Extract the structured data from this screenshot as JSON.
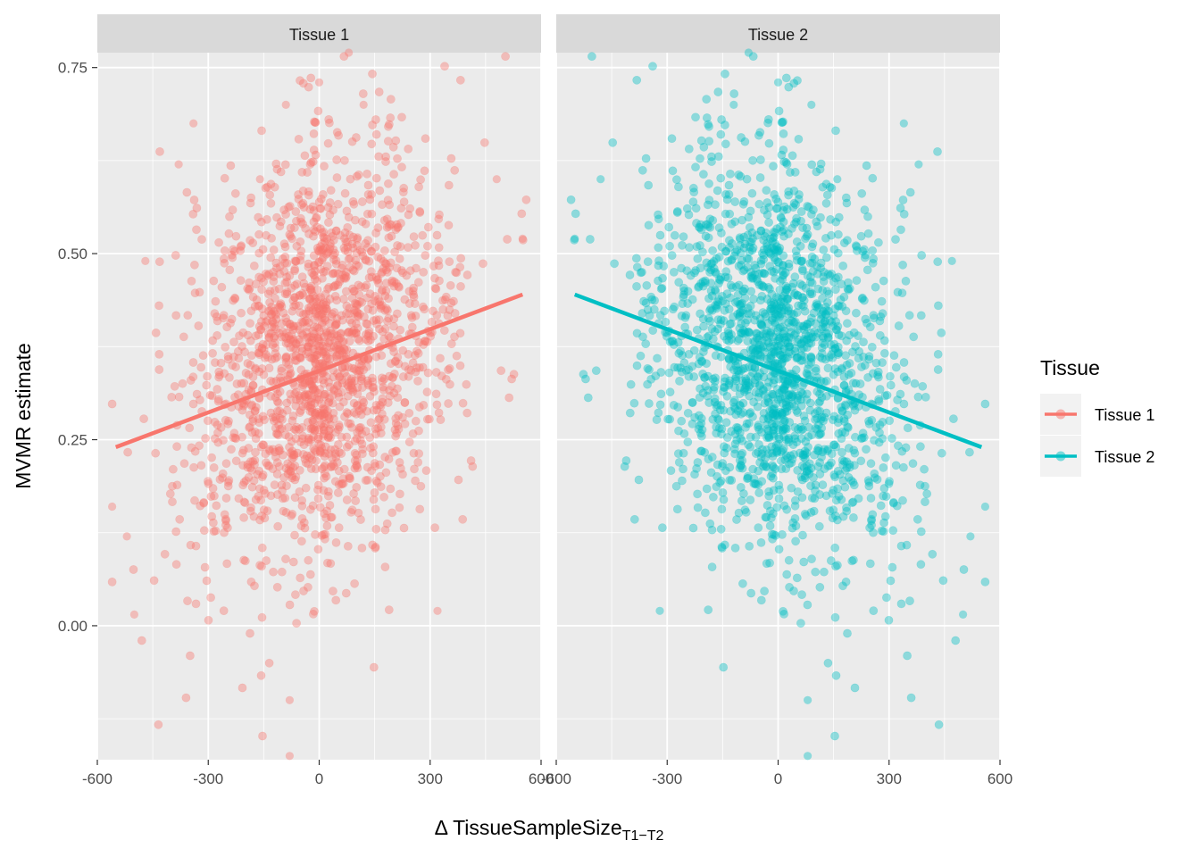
{
  "chart_data": {
    "type": "scatter",
    "facets": [
      "Tissue 1",
      "Tissue 2"
    ],
    "ylabel": "MVMR estimate",
    "xlabel": {
      "main": "Δ TissueSampleSize",
      "subscript": "T1−T2"
    },
    "xlim": [
      -600,
      600
    ],
    "ylim": [
      -0.18,
      0.77
    ],
    "x_ticks": [
      -600,
      -300,
      0,
      300,
      600
    ],
    "x_tick_labels": [
      "-600",
      "-300",
      "0",
      "300",
      "600"
    ],
    "y_ticks": [
      0.0,
      0.25,
      0.5,
      0.75
    ],
    "y_tick_labels": [
      "0.00",
      "0.25",
      "0.50",
      "0.75"
    ],
    "grid": true,
    "point_alpha": 0.4,
    "n_points_per_panel": 1800,
    "legend": {
      "title": "Tissue",
      "position": "right",
      "entries": [
        {
          "name": "Tissue 1",
          "color": "#F8766D"
        },
        {
          "name": "Tissue 2",
          "color": "#00BFC4"
        }
      ]
    },
    "series": [
      {
        "name": "Tissue 1",
        "facet": "Tissue 1",
        "color": "#F8766D",
        "fit_line": {
          "x": [
            -550,
            550
          ],
          "y": [
            0.24,
            0.445
          ]
        },
        "sample_points": [
          {
            "x": -560,
            "y": 0.16
          },
          {
            "x": -520,
            "y": 0.12
          },
          {
            "x": -500,
            "y": 0.015
          },
          {
            "x": -470,
            "y": 0.49
          },
          {
            "x": -380,
            "y": 0.62
          },
          {
            "x": -340,
            "y": 0.675
          },
          {
            "x": -160,
            "y": 0.6
          },
          {
            "x": -90,
            "y": 0.7
          },
          {
            "x": -80,
            "y": -0.1
          },
          {
            "x": -80,
            "y": -0.175
          },
          {
            "x": 0,
            "y": 0.73
          },
          {
            "x": 80,
            "y": 0.77
          },
          {
            "x": 120,
            "y": 0.7
          },
          {
            "x": 320,
            "y": 0.02
          },
          {
            "x": 480,
            "y": 0.6
          },
          {
            "x": 550,
            "y": 0.52
          }
        ]
      },
      {
        "name": "Tissue 2",
        "facet": "Tissue 2",
        "color": "#00BFC4",
        "fit_line": {
          "x": [
            -550,
            550
          ],
          "y": [
            0.445,
            0.24
          ]
        },
        "sample_points": [
          {
            "x": 560,
            "y": 0.16
          },
          {
            "x": 520,
            "y": 0.12
          },
          {
            "x": 500,
            "y": 0.015
          },
          {
            "x": 470,
            "y": 0.49
          },
          {
            "x": 380,
            "y": 0.62
          },
          {
            "x": 340,
            "y": 0.675
          },
          {
            "x": 160,
            "y": 0.6
          },
          {
            "x": 90,
            "y": 0.7
          },
          {
            "x": 80,
            "y": -0.1
          },
          {
            "x": 80,
            "y": -0.175
          },
          {
            "x": 0,
            "y": 0.73
          },
          {
            "x": -80,
            "y": 0.77
          },
          {
            "x": -120,
            "y": 0.7
          },
          {
            "x": -320,
            "y": 0.02
          },
          {
            "x": -480,
            "y": 0.6
          },
          {
            "x": -550,
            "y": 0.52
          }
        ]
      }
    ]
  }
}
